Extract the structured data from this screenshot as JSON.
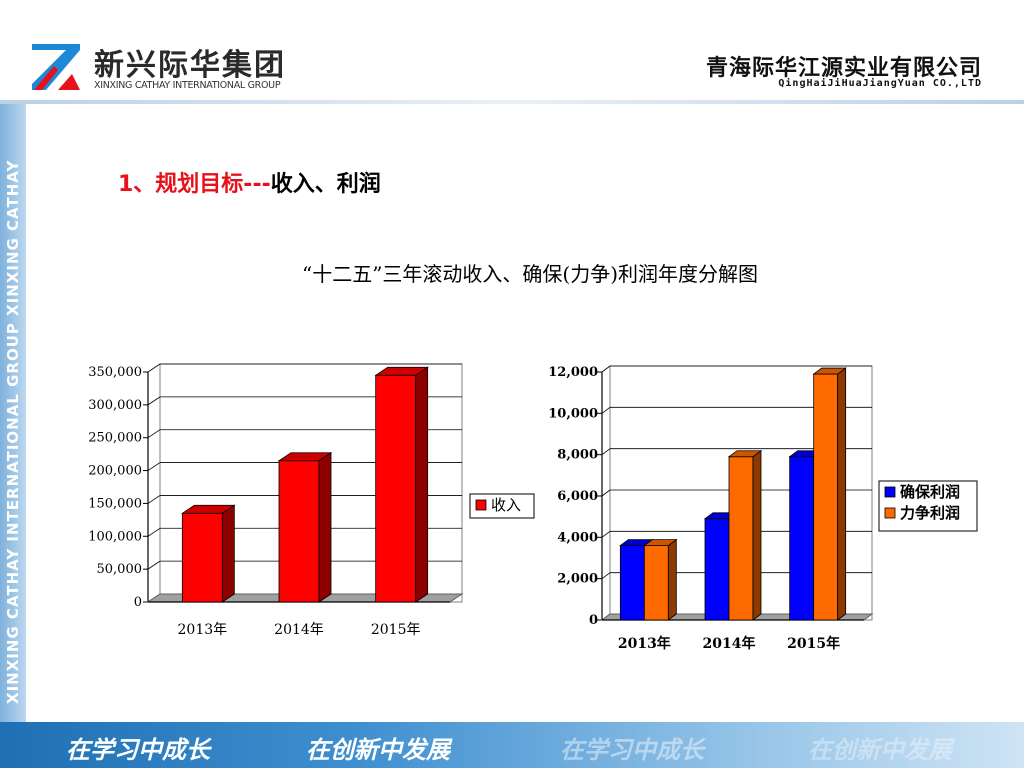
{
  "header": {
    "group_name_cn": "新兴际华集团",
    "group_name_en": "XINXING CATHAY INTERNATIONAL GROUP",
    "company_cn": "青海际华江源实业有限公司",
    "company_en": "QingHaiJiHuaJiangYuan CO.,LTD"
  },
  "side_band_text": "XINXING CATHAY INTERNATIONAL GROUP XINXING CATHAY",
  "footer": {
    "slogans": [
      "在学习中成长",
      "在创新中发展",
      "在学习中成长",
      "在创新中发展"
    ]
  },
  "section": {
    "title_red": "1、规划目标---",
    "title_black": "收入、利润"
  },
  "caption": "“十二五”三年滚动收入、确保(力争)利润年度分解图",
  "colors": {
    "revenue": "#ff0000",
    "guaranteed": "#0000ff",
    "strive": "#ff6a00",
    "accent_red": "#e8101a"
  },
  "chart_data": [
    {
      "type": "bar",
      "categories": [
        "2013年",
        "2014年",
        "2015年"
      ],
      "series": [
        {
          "name": "收入",
          "values": [
            135000,
            215000,
            345000
          ]
        }
      ],
      "ylim": [
        0,
        350000
      ],
      "yticks": [
        0,
        50000,
        100000,
        150000,
        200000,
        250000,
        300000,
        350000
      ],
      "ytick_labels": [
        "0",
        "50,000",
        "100,000",
        "150,000",
        "200,000",
        "250,000",
        "300,000",
        "350,000"
      ],
      "grid": true,
      "legend": "right",
      "style": "3d"
    },
    {
      "type": "bar",
      "categories": [
        "2013年",
        "2014年",
        "2015年"
      ],
      "series": [
        {
          "name": "确保利润",
          "values": [
            3600,
            4900,
            7900
          ]
        },
        {
          "name": "力争利润",
          "values": [
            3600,
            7900,
            11900
          ]
        }
      ],
      "ylim": [
        0,
        12000
      ],
      "yticks": [
        0,
        2000,
        4000,
        6000,
        8000,
        10000,
        12000
      ],
      "ytick_labels": [
        "0",
        "2,000",
        "4,000",
        "6,000",
        "8,000",
        "10,000",
        "12,000"
      ],
      "grid": true,
      "legend": "right",
      "style": "3d"
    }
  ]
}
